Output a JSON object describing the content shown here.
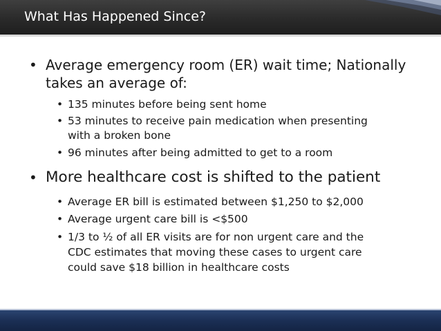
{
  "slide": {
    "title": "What Has Happened Since?",
    "bullets": [
      {
        "line1": "Average emergency room (ER) wait time; Nationally",
        "line2": "takes an average of:",
        "sub": [
          {
            "line1": "135 minutes before being sent home"
          },
          {
            "line1": "53 minutes to receive pain medication when presenting",
            "line2": "with a broken bone"
          },
          {
            "line1": "96 minutes after being admitted to get to a room"
          }
        ]
      },
      {
        "line1": "More healthcare cost is shifted to the patient",
        "sub": [
          {
            "line1": "Average ER bill is estimated between $1,250 to $2,000"
          },
          {
            "line1": "Average urgent care bill is <$500"
          },
          {
            "line1": "1/3 to ½ of all ER visits are for non urgent care and the",
            "line2": "CDC estimates that moving these cases to urgent care",
            "line3": "could save $18 billion in healthcare costs"
          }
        ]
      }
    ]
  },
  "colors": {
    "header": "#2a2a2a",
    "footer": "#1b2f55",
    "accent": "#2b4470"
  },
  "icons": {
    "bullet": "bullet-dot-icon"
  }
}
